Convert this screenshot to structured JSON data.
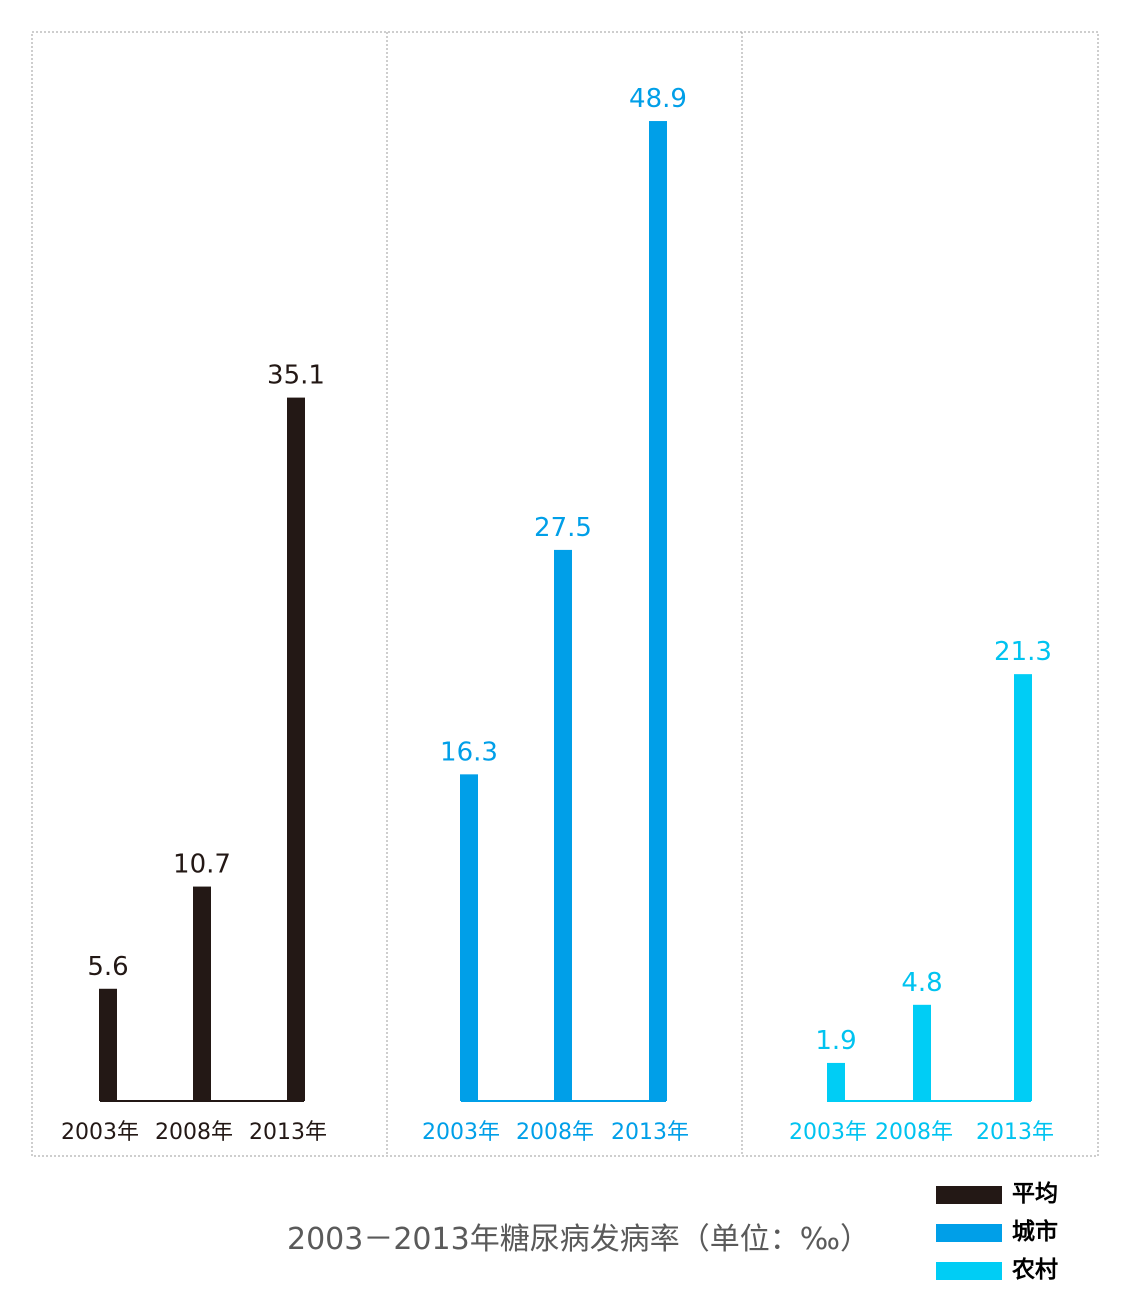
{
  "title": "2003－2013年糖尿病发病率（单位：‰）",
  "legend": [
    {
      "label": "平均",
      "color": "#231815"
    },
    {
      "label": "城市",
      "color": "#009fe8"
    },
    {
      "label": "农村",
      "color": "#00cdf5"
    }
  ],
  "chart_data": {
    "type": "bar",
    "title": "2003－2013年糖尿病发病率（单位：‰）",
    "unit": "‰",
    "categories": [
      "2003年",
      "2008年",
      "2013年"
    ],
    "ylim": [
      0,
      50
    ],
    "grid": false,
    "legend_position": "bottom-right",
    "series": [
      {
        "name": "平均",
        "color": "#231815",
        "values": [
          5.6,
          10.7,
          35.1
        ],
        "labels": [
          "5.6",
          "10.7",
          "35.1"
        ]
      },
      {
        "name": "城市",
        "color": "#009fe8",
        "values": [
          16.3,
          27.5,
          48.9
        ],
        "labels": [
          "16.3",
          "27.5",
          "48.9"
        ]
      },
      {
        "name": "农村",
        "color": "#00cdf5",
        "values": [
          1.9,
          4.8,
          21.3
        ],
        "labels": [
          "1.9",
          "4.8",
          "21.3"
        ]
      }
    ]
  }
}
